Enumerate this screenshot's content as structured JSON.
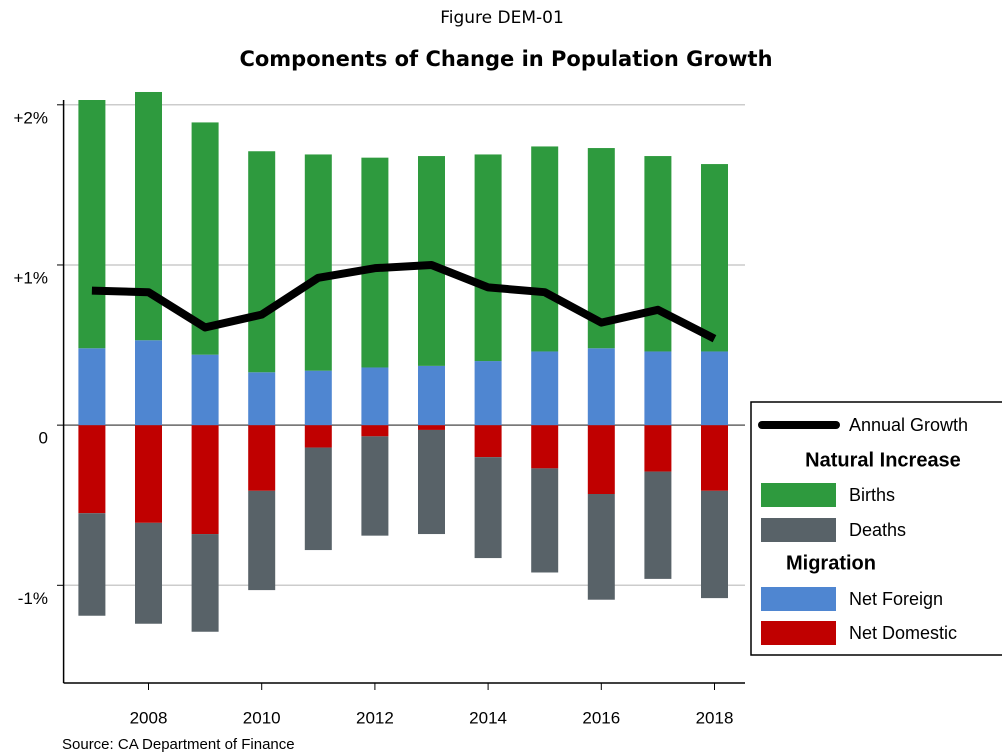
{
  "chart_data": {
    "type": "stacked-bar-line",
    "title": "Figure DEM-01",
    "subtitle": "Components of Change in Population Growth",
    "source": "Source:  CA Department of Finance",
    "categories": [
      null,
      2008,
      null,
      2010,
      null,
      2012,
      null,
      2014,
      null,
      2016,
      null,
      2018
    ],
    "line": {
      "name": "Annual Growth",
      "color": "#000000",
      "values": [
        0.84,
        0.83,
        0.61,
        0.69,
        0.92,
        0.98,
        1.0,
        0.86,
        0.83,
        0.64,
        0.72,
        0.54
      ]
    },
    "series": [
      {
        "name": "Births",
        "color": "#2e9a3e",
        "values": [
          1.55,
          1.55,
          1.45,
          1.38,
          1.35,
          1.31,
          1.31,
          1.29,
          1.28,
          1.25,
          1.22,
          1.17
        ]
      },
      {
        "name": "Deaths",
        "color": "#586268",
        "values": [
          -0.64,
          -0.63,
          -0.61,
          -0.62,
          -0.64,
          -0.62,
          -0.65,
          -0.63,
          -0.65,
          -0.66,
          -0.67,
          -0.67
        ]
      },
      {
        "name": "Net Foreign",
        "color": "#4f86d1",
        "values": [
          0.48,
          0.53,
          0.44,
          0.33,
          0.34,
          0.36,
          0.37,
          0.4,
          0.46,
          0.48,
          0.46,
          0.46
        ]
      },
      {
        "name": "Net Domestic",
        "color": "#c00000",
        "values": [
          -0.55,
          -0.61,
          -0.68,
          -0.41,
          -0.14,
          -0.07,
          -0.03,
          -0.2,
          -0.27,
          -0.43,
          -0.29,
          -0.41
        ]
      }
    ],
    "legend_headings": [
      "Natural Increase",
      "Migration"
    ],
    "legend_position": "right",
    "ylim": [
      -1.61,
      2.03
    ],
    "yticks": [
      {
        "value": -1,
        "label": "-1%"
      },
      0,
      {
        "value": 1,
        "label": "+1%"
      },
      {
        "value": 2,
        "label": "+2%"
      }
    ],
    "grid": true
  }
}
